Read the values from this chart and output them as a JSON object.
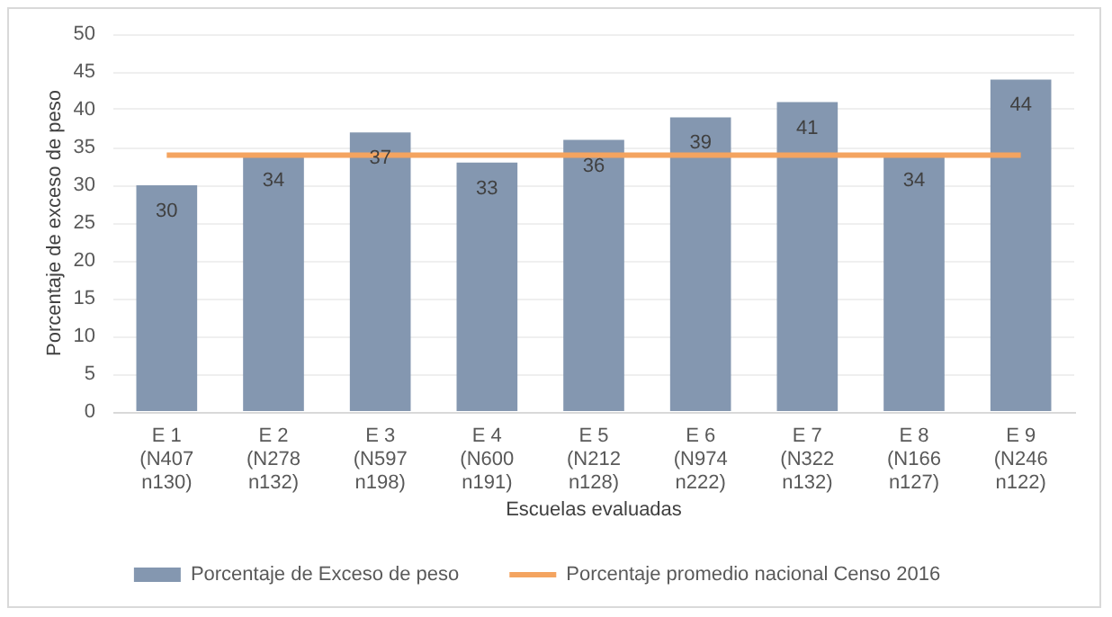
{
  "chart_data": {
    "type": "bar",
    "xlabel": "Escuelas evaluadas",
    "ylabel": "Porcentaje de exceso de peso",
    "categories": [
      "E 1\n(N407\nn130)",
      "E 2\n(N278\nn132)",
      "E 3\n(N597\nn198)",
      "E 4\n(N600\nn191)",
      "E 5\n(N212\nn128)",
      "E 6\n(N974\nn222)",
      "E 7\n(N322\nn132)",
      "E 8\n(N166\nn127)",
      "E 9\n(N246\nn122)"
    ],
    "series": [
      {
        "name": "Porcentaje de Exceso de peso",
        "color": "#8497b0",
        "values": [
          30,
          34,
          37,
          33,
          36,
          39,
          41,
          34,
          44
        ],
        "value_labels": [
          "30",
          "34",
          "37",
          "33",
          "36",
          "39",
          "41",
          "34",
          "44"
        ]
      },
      {
        "name": "Porcentaje promedio nacional Censo 2016",
        "type": "line",
        "color": "#f4a460",
        "values": [
          34,
          34,
          34,
          34,
          34,
          34,
          34,
          34,
          34
        ]
      }
    ],
    "ylim": [
      0,
      50
    ],
    "yticks": [
      0,
      5,
      10,
      15,
      20,
      25,
      30,
      35,
      40,
      45,
      50
    ],
    "grid": "y",
    "legend": "bottom",
    "marker": "none"
  }
}
